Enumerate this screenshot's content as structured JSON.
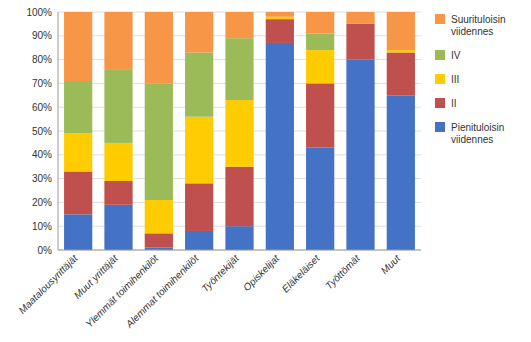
{
  "chart_data": {
    "type": "bar",
    "stacked": true,
    "grid": true,
    "legend": "right",
    "categories": [
      "Maatalousyrittäjät",
      "Muut yrittäjät",
      "Ylemmät toimihenkilöt",
      "Alemmat toimihenkilöt",
      "Työntekijät",
      "Opiskelijat",
      "Eläkeläiset",
      "Työttömät",
      "Muut"
    ],
    "series": [
      {
        "name": "Pienituloisin\nviidennes",
        "color": "#4472C4",
        "values": [
          15,
          19,
          1,
          8,
          10,
          87,
          43,
          80,
          65
        ]
      },
      {
        "name": "II",
        "color": "#C0504D",
        "values": [
          18,
          10,
          6,
          20,
          25,
          10,
          27,
          15,
          18
        ]
      },
      {
        "name": "III",
        "color": "#FFCC00",
        "values": [
          16,
          16,
          14,
          28,
          28,
          1,
          14,
          0,
          1
        ]
      },
      {
        "name": "IV",
        "color": "#9BBB59",
        "values": [
          22,
          31,
          49,
          27,
          26,
          0,
          7,
          0,
          0
        ]
      },
      {
        "name": "Suurituloisin\nviidennes",
        "color": "#F79646",
        "values": [
          29,
          24,
          30,
          17,
          11,
          2,
          9,
          5,
          16
        ]
      }
    ],
    "ylim": [
      0,
      100
    ],
    "yticks": [
      {
        "value": 0,
        "label": "0%"
      },
      {
        "value": 10,
        "label": "10%"
      },
      {
        "value": 20,
        "label": "20%"
      },
      {
        "value": 30,
        "label": "30%"
      },
      {
        "value": 40,
        "label": "40%"
      },
      {
        "value": 50,
        "label": "50%"
      },
      {
        "value": 60,
        "label": "60%"
      },
      {
        "value": 70,
        "label": "70%"
      },
      {
        "value": 80,
        "label": "80%"
      },
      {
        "value": 90,
        "label": "90%"
      },
      {
        "value": 100,
        "label": "100%"
      }
    ]
  }
}
